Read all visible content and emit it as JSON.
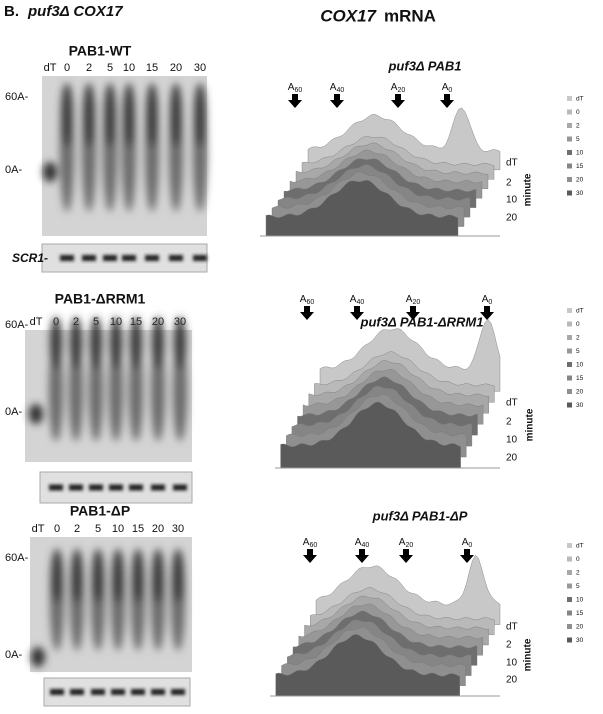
{
  "panel_label": "B.",
  "panel_title": "puf3Δ  COX17",
  "right_title": {
    "gene": "COX17",
    "suffix": "mRNA"
  },
  "gels": [
    {
      "title": "PAB1-WT",
      "lanes": [
        "dT",
        "0",
        "2",
        "5",
        "10",
        "15",
        "20",
        "30"
      ],
      "markers": [
        "60A-",
        "0A-"
      ],
      "loading_label": "SCR1-"
    },
    {
      "title": "PAB1-ΔRRM1",
      "lanes": [
        "dT",
        "0",
        "2",
        "5",
        "10",
        "15",
        "20",
        "30"
      ],
      "markers": [
        "60A-",
        "0A-"
      ]
    },
    {
      "title": "PAB1-ΔP",
      "lanes": [
        "dT",
        "0",
        "2",
        "5",
        "10",
        "15",
        "20",
        "30"
      ],
      "markers": [
        "60A-",
        "0A-"
      ]
    }
  ],
  "plots": [
    {
      "title": "puf3Δ PAB1",
      "arrows": [
        {
          "base": "A",
          "sub": "60"
        },
        {
          "base": "A",
          "sub": "40"
        },
        {
          "base": "A",
          "sub": "20"
        },
        {
          "base": "A",
          "sub": "0"
        }
      ],
      "depth_labels": [
        "dT",
        "2",
        "10",
        "20"
      ],
      "depth_axis": "minute",
      "legend": [
        "dT",
        "0",
        "2",
        "5",
        "10",
        "15",
        "20",
        "30"
      ]
    },
    {
      "title": "puf3Δ PAB1-ΔRRM1",
      "arrows": [
        {
          "base": "A",
          "sub": "60"
        },
        {
          "base": "A",
          "sub": "40"
        },
        {
          "base": "A",
          "sub": "20"
        },
        {
          "base": "A",
          "sub": "0"
        }
      ],
      "depth_labels": [
        "dT",
        "2",
        "10",
        "20"
      ],
      "depth_axis": "minute",
      "legend": [
        "dT",
        "0",
        "2",
        "5",
        "10",
        "15",
        "20",
        "30"
      ]
    },
    {
      "title": "puf3Δ PAB1-ΔP",
      "arrows": [
        {
          "base": "A",
          "sub": "60"
        },
        {
          "base": "A",
          "sub": "40"
        },
        {
          "base": "A",
          "sub": "20"
        },
        {
          "base": "A",
          "sub": "0"
        }
      ],
      "depth_labels": [
        "dT",
        "2",
        "10",
        "20"
      ],
      "depth_axis": "minute",
      "legend": [
        "dT",
        "0",
        "2",
        "5",
        "10",
        "15",
        "20",
        "30"
      ]
    }
  ]
}
